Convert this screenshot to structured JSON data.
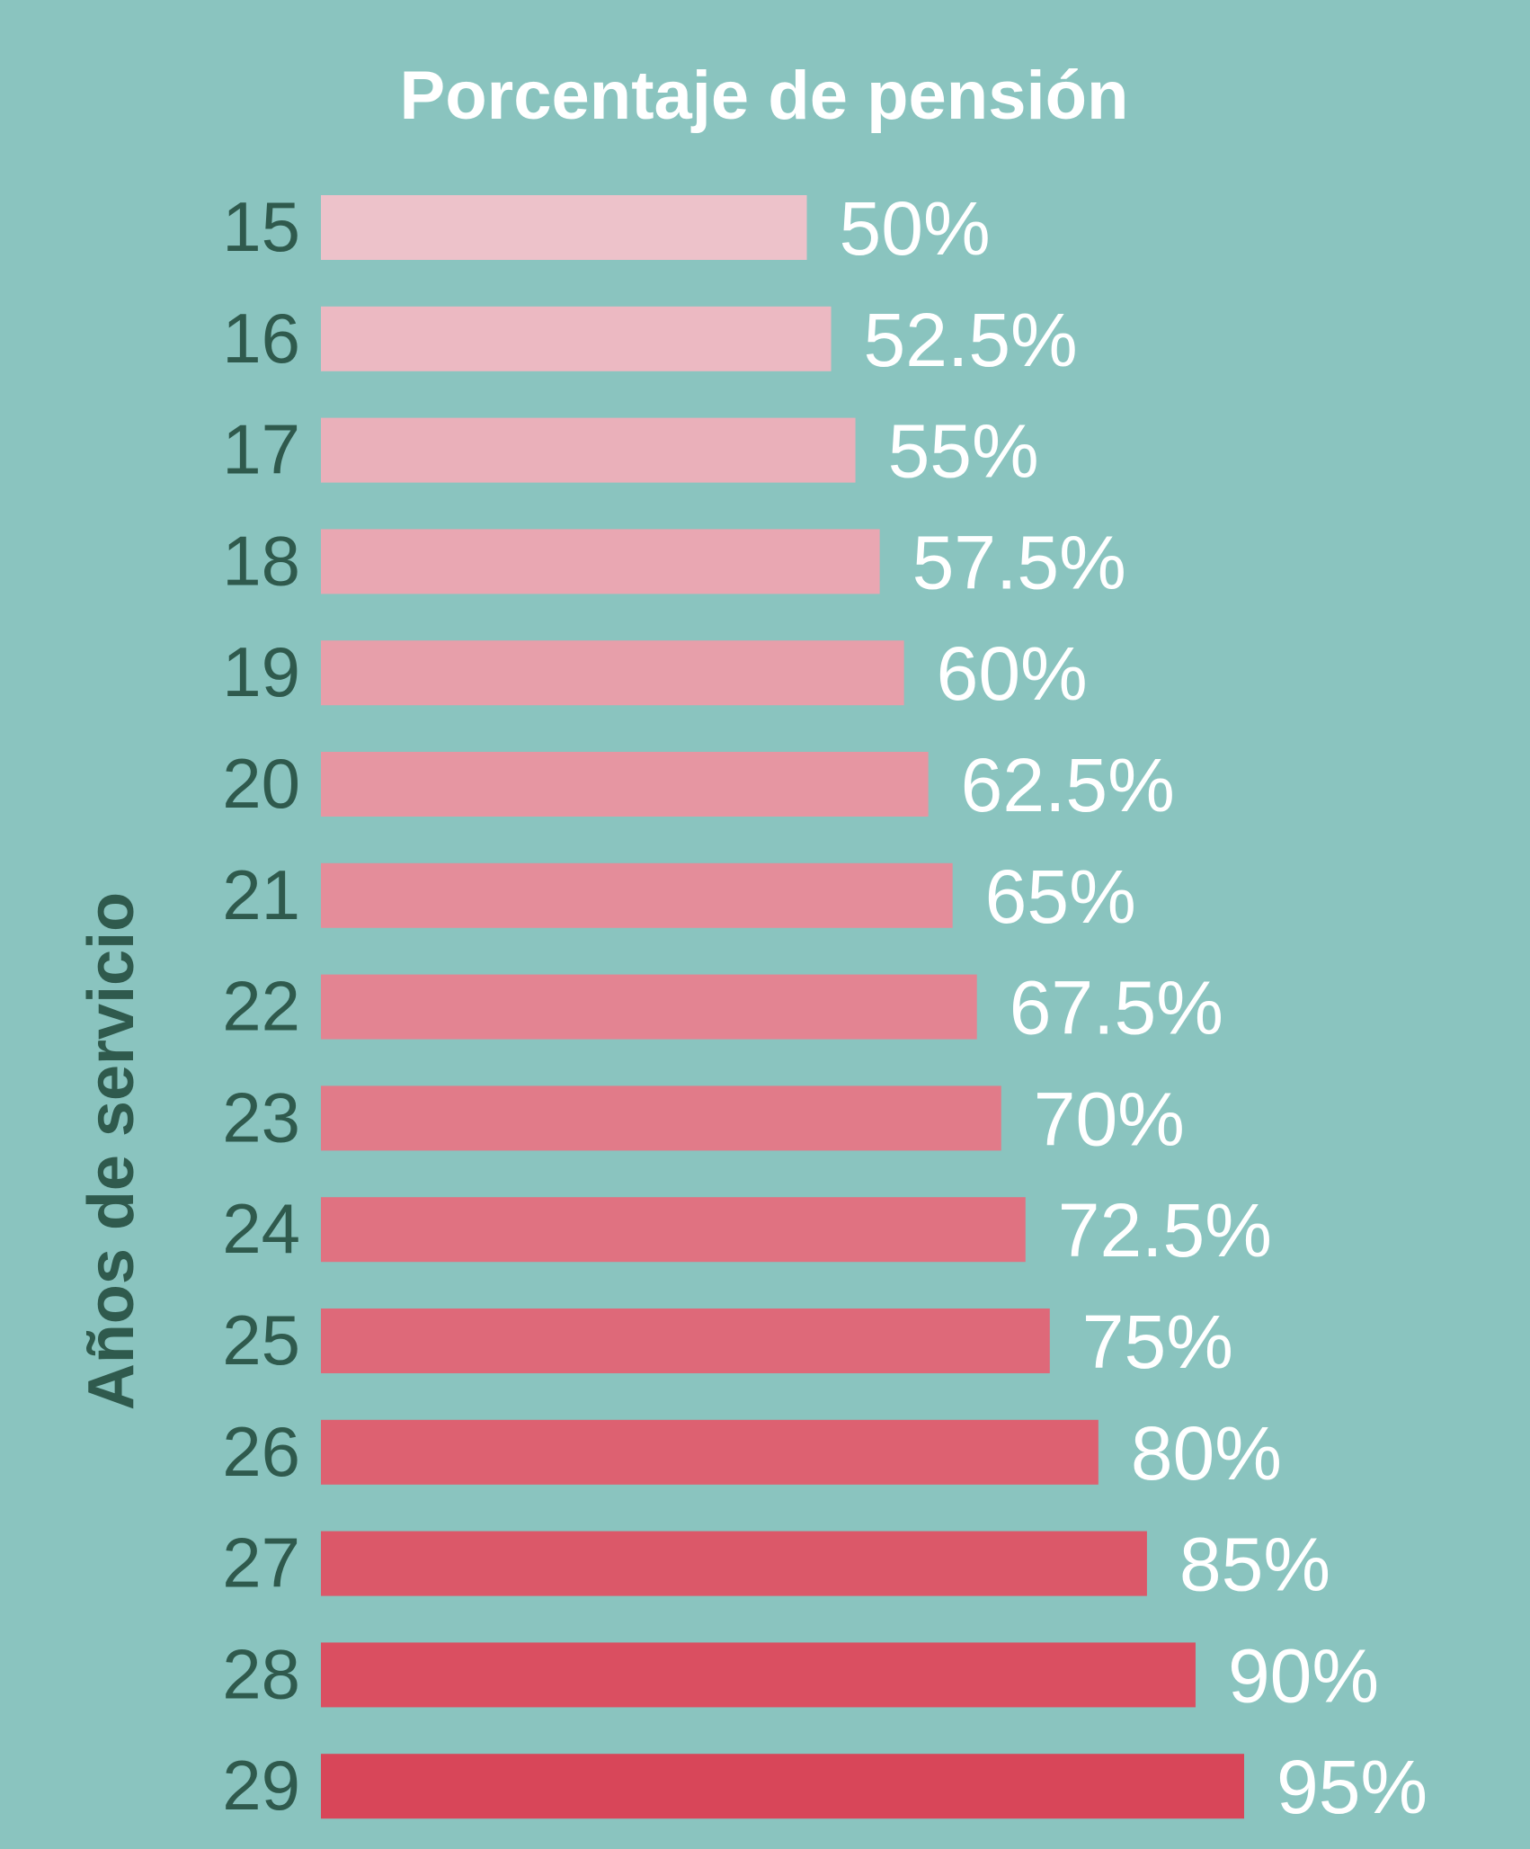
{
  "chart_data": {
    "type": "bar",
    "orientation": "horizontal",
    "title": "Porcentaje de pensión",
    "xlabel": "",
    "ylabel": "Años de servicio",
    "categories": [
      "15",
      "16",
      "17",
      "18",
      "19",
      "20",
      "21",
      "22",
      "23",
      "24",
      "25",
      "26",
      "27",
      "28",
      "29"
    ],
    "values": [
      50,
      52.5,
      55,
      57.5,
      60,
      62.5,
      65,
      67.5,
      70,
      72.5,
      75,
      80,
      85,
      90,
      95
    ],
    "value_labels": [
      "50%",
      "52.5%",
      "55%",
      "57.5%",
      "60%",
      "62.5%",
      "65%",
      "67.5%",
      "70%",
      "72.5%",
      "75%",
      "80%",
      "85%",
      "90%",
      "95%"
    ],
    "xlim": [
      0,
      95
    ],
    "grid": false,
    "legend": "none"
  },
  "colors": {
    "background": "#8ac4bf",
    "bar_light": "#edc2ca",
    "bar_dark": "#d84659",
    "tick_text": "#2f5a4d",
    "value_text": "#ffffff"
  }
}
